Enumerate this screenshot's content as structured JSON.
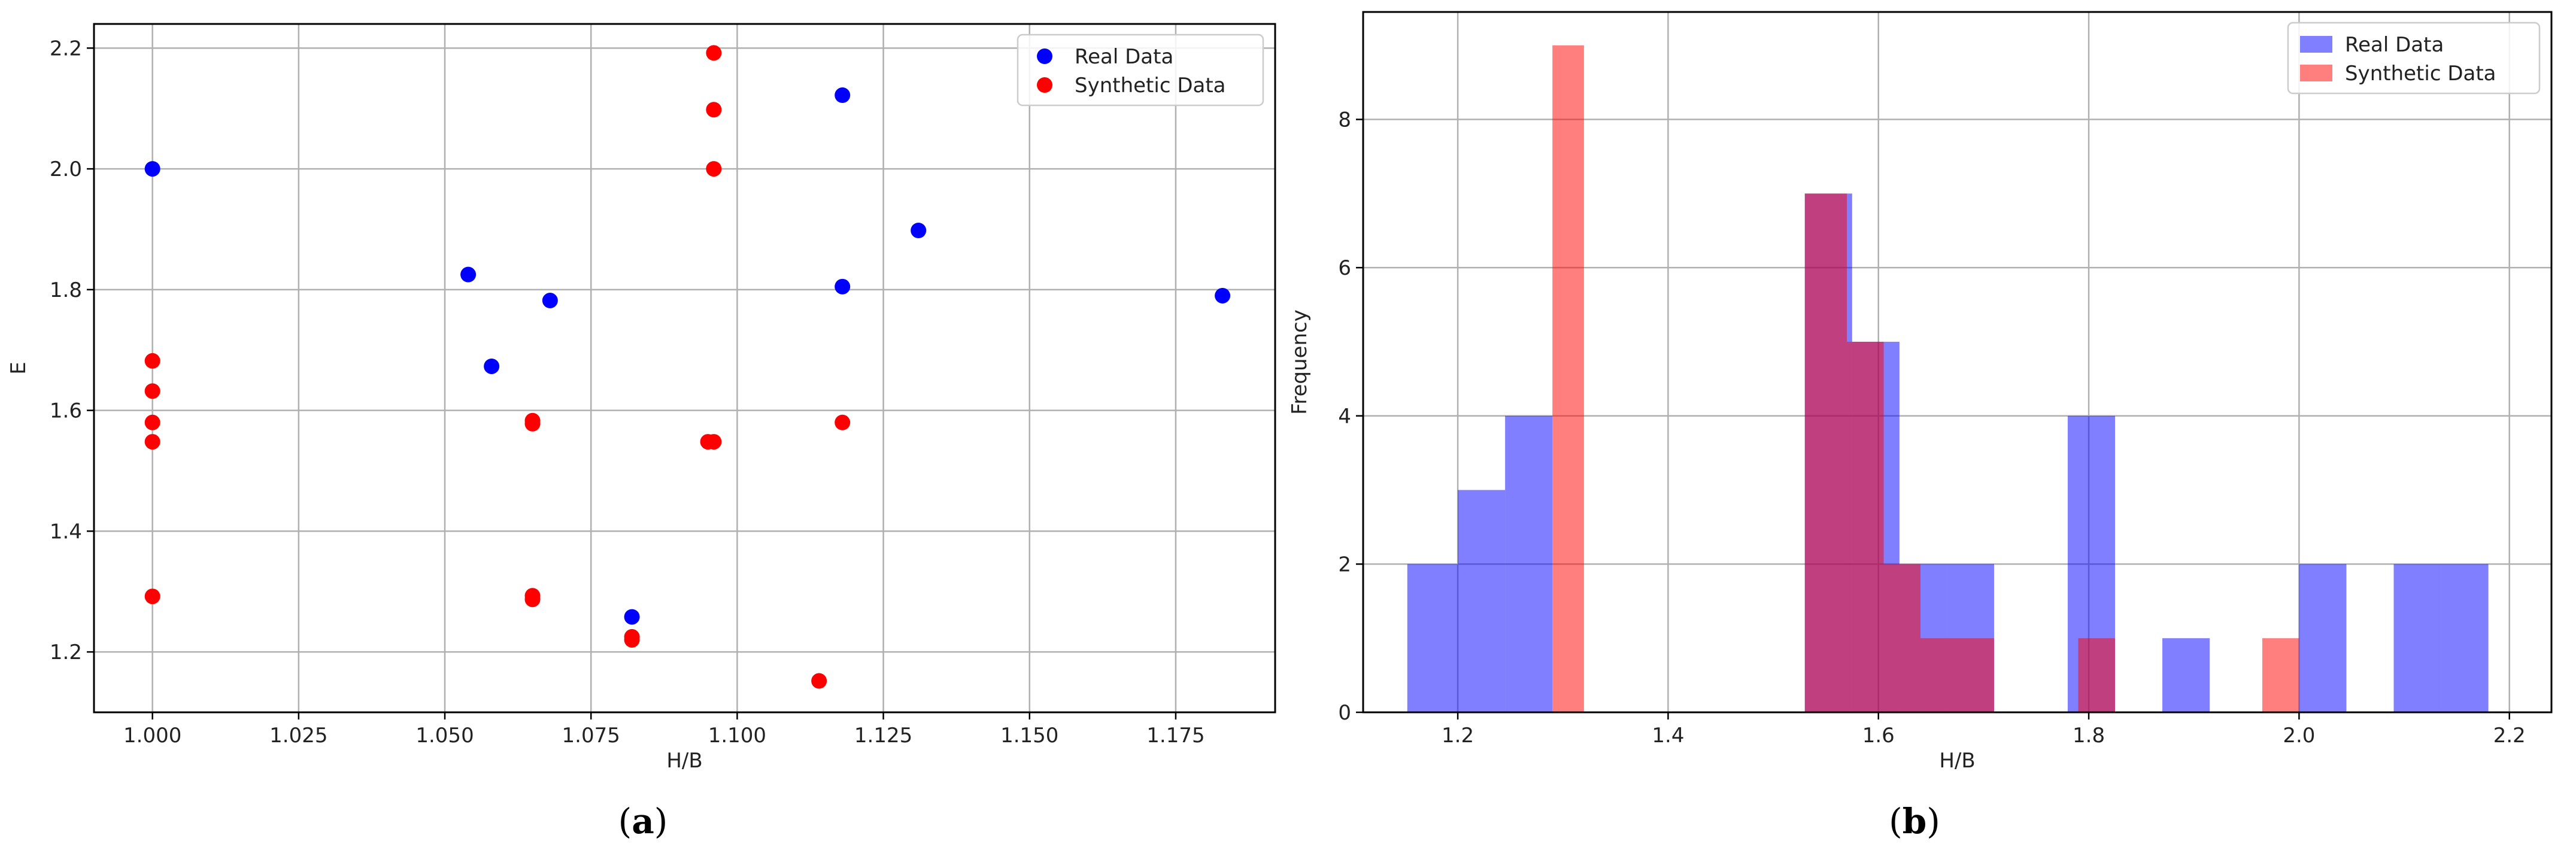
{
  "chart_data": [
    {
      "type": "scatter",
      "panel_label": "a",
      "title": "",
      "xlabel": "H/B",
      "ylabel": "E",
      "xlim": [
        0.99,
        1.192
      ],
      "ylim": [
        1.1,
        2.24
      ],
      "xticks": [
        1.0,
        1.025,
        1.05,
        1.075,
        1.1,
        1.125,
        1.15,
        1.175
      ],
      "xtick_labels": [
        "1.000",
        "1.025",
        "1.050",
        "1.075",
        "1.100",
        "1.125",
        "1.150",
        "1.175"
      ],
      "yticks": [
        1.2,
        1.4,
        1.6,
        1.8,
        2.0,
        2.2
      ],
      "ytick_labels": [
        "1.2",
        "1.4",
        "1.6",
        "1.8",
        "2.0",
        "2.2"
      ],
      "grid": true,
      "legend_position": "top-right",
      "series": [
        {
          "name": "Real Data",
          "color": "#0000ff",
          "points": [
            [
              1.0,
              2.0
            ],
            [
              1.054,
              1.825
            ],
            [
              1.058,
              1.673
            ],
            [
              1.068,
              1.782
            ],
            [
              1.082,
              1.258
            ],
            [
              1.118,
              2.122
            ],
            [
              1.118,
              1.805
            ],
            [
              1.131,
              1.898
            ],
            [
              1.183,
              1.79
            ]
          ]
        },
        {
          "name": "Synthetic Data",
          "color": "#ff0000",
          "points": [
            [
              1.0,
              1.682
            ],
            [
              1.0,
              1.632
            ],
            [
              1.0,
              1.58
            ],
            [
              1.0,
              1.548
            ],
            [
              1.0,
              1.292
            ],
            [
              1.065,
              1.583
            ],
            [
              1.065,
              1.578
            ],
            [
              1.065,
              1.293
            ],
            [
              1.065,
              1.287
            ],
            [
              1.082,
              1.225
            ],
            [
              1.082,
              1.22
            ],
            [
              1.095,
              1.548
            ],
            [
              1.096,
              1.548
            ],
            [
              1.096,
              2.192
            ],
            [
              1.096,
              2.098
            ],
            [
              1.096,
              2.0
            ],
            [
              1.114,
              1.152
            ],
            [
              1.118,
              1.58
            ]
          ]
        }
      ]
    },
    {
      "type": "bar",
      "subtype": "histogram",
      "panel_label": "b",
      "title": "",
      "xlabel": "H/B",
      "ylabel": "Frequency",
      "xlim": [
        1.11,
        2.24
      ],
      "ylim": [
        0,
        9.45
      ],
      "xticks": [
        1.2,
        1.4,
        1.6,
        1.8,
        2.0,
        2.2
      ],
      "xtick_labels": [
        "1.2",
        "1.4",
        "1.6",
        "1.8",
        "2.0",
        "2.2"
      ],
      "yticks": [
        0,
        2,
        4,
        6,
        8
      ],
      "ytick_labels": [
        "0",
        "2",
        "4",
        "6",
        "8"
      ],
      "grid": true,
      "legend_position": "top-right",
      "series": [
        {
          "name": "Real Data",
          "color": "#0000ff",
          "opacity": 0.5,
          "bins": [
            {
              "x0": 1.152,
              "x1": 1.2,
              "count": 2
            },
            {
              "x0": 1.2,
              "x1": 1.245,
              "count": 3
            },
            {
              "x0": 1.245,
              "x1": 1.29,
              "count": 4
            },
            {
              "x0": 1.53,
              "x1": 1.575,
              "count": 7
            },
            {
              "x0": 1.575,
              "x1": 1.62,
              "count": 5
            },
            {
              "x0": 1.62,
              "x1": 1.665,
              "count": 2
            },
            {
              "x0": 1.665,
              "x1": 1.71,
              "count": 2
            },
            {
              "x0": 1.78,
              "x1": 1.825,
              "count": 4
            },
            {
              "x0": 1.87,
              "x1": 1.915,
              "count": 1
            },
            {
              "x0": 2.0,
              "x1": 2.045,
              "count": 2
            },
            {
              "x0": 2.09,
              "x1": 2.135,
              "count": 2
            },
            {
              "x0": 2.135,
              "x1": 2.18,
              "count": 2
            }
          ]
        },
        {
          "name": "Synthetic Data",
          "color": "#ff0000",
          "opacity": 0.5,
          "bins": [
            {
              "x0": 1.29,
              "x1": 1.32,
              "count": 9
            },
            {
              "x0": 1.53,
              "x1": 1.57,
              "count": 7
            },
            {
              "x0": 1.57,
              "x1": 1.605,
              "count": 5
            },
            {
              "x0": 1.605,
              "x1": 1.64,
              "count": 2
            },
            {
              "x0": 1.64,
              "x1": 1.675,
              "count": 1
            },
            {
              "x0": 1.675,
              "x1": 1.71,
              "count": 1
            },
            {
              "x0": 1.79,
              "x1": 1.825,
              "count": 1
            },
            {
              "x0": 1.965,
              "x1": 2.0,
              "count": 1
            }
          ]
        }
      ]
    }
  ]
}
